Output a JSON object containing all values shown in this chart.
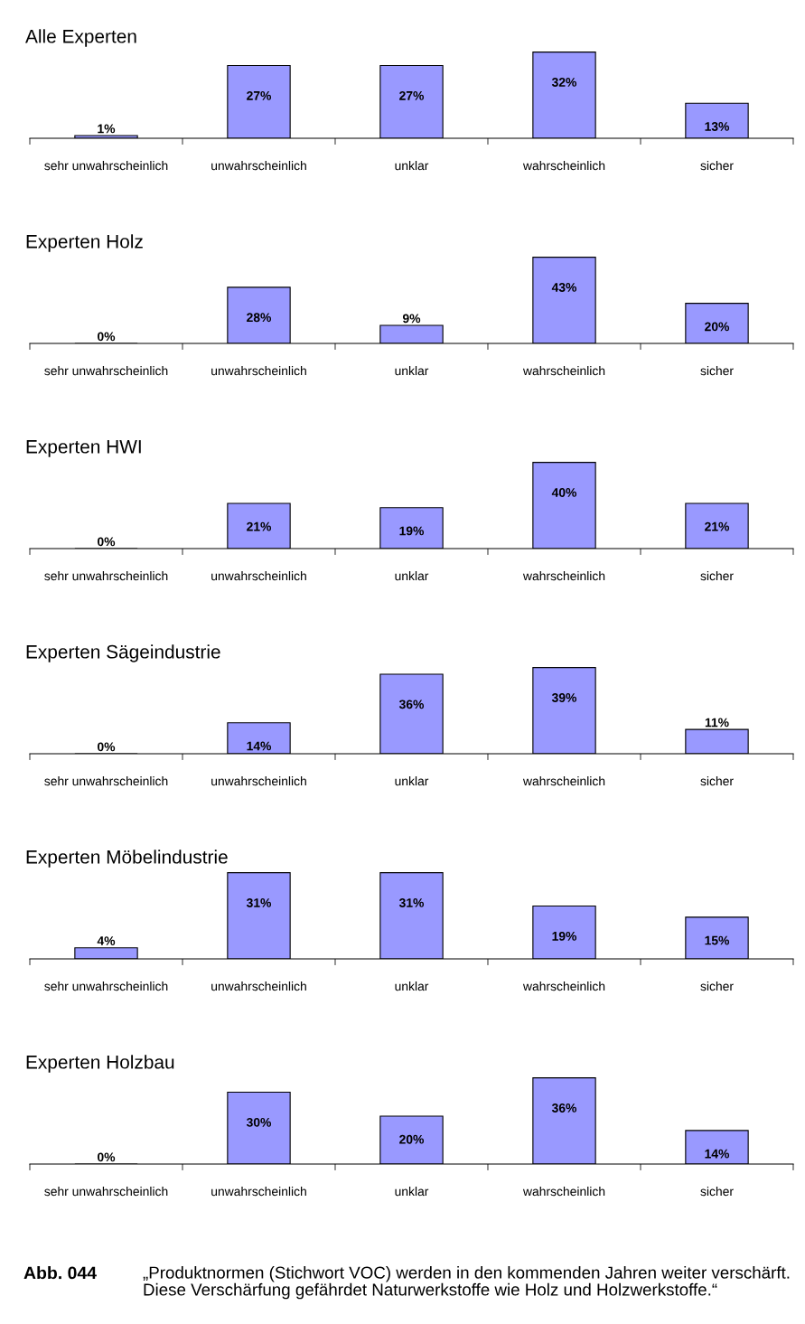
{
  "chart_data": [
    {
      "type": "bar",
      "title": "Alle Experten",
      "categories": [
        "sehr unwahrscheinlich",
        "unwahrscheinlich",
        "unklar",
        "wahrscheinlich",
        "sicher"
      ],
      "values": [
        1,
        27,
        27,
        32,
        13
      ],
      "value_labels": [
        "1%",
        "27%",
        "27%",
        "32%",
        "13%"
      ],
      "color": "#9999ff"
    },
    {
      "type": "bar",
      "title": "Experten Holz",
      "categories": [
        "sehr unwahrscheinlich",
        "unwahrscheinlich",
        "unklar",
        "wahrscheinlich",
        "sicher"
      ],
      "values": [
        0,
        28,
        9,
        43,
        20
      ],
      "value_labels": [
        "0%",
        "28%",
        "9%",
        "43%",
        "20%"
      ],
      "color": "#9999ff"
    },
    {
      "type": "bar",
      "title": "Experten HWI",
      "categories": [
        "sehr unwahrscheinlich",
        "unwahrscheinlich",
        "unklar",
        "wahrscheinlich",
        "sicher"
      ],
      "values": [
        0,
        21,
        19,
        40,
        21
      ],
      "value_labels": [
        "0%",
        "21%",
        "19%",
        "40%",
        "21%"
      ],
      "color": "#9999ff"
    },
    {
      "type": "bar",
      "title": "Experten Sägeindustrie",
      "categories": [
        "sehr unwahrscheinlich",
        "unwahrscheinlich",
        "unklar",
        "wahrscheinlich",
        "sicher"
      ],
      "values": [
        0,
        14,
        36,
        39,
        11
      ],
      "value_labels": [
        "0%",
        "14%",
        "36%",
        "39%",
        "11%"
      ],
      "color": "#9999ff"
    },
    {
      "type": "bar",
      "title": "Experten Möbelindustrie",
      "categories": [
        "sehr unwahrscheinlich",
        "unwahrscheinlich",
        "unklar",
        "wahrscheinlich",
        "sicher"
      ],
      "values": [
        4,
        31,
        31,
        19,
        15
      ],
      "value_labels": [
        "4%",
        "31%",
        "31%",
        "19%",
        "15%"
      ],
      "color": "#9999ff"
    },
    {
      "type": "bar",
      "title": "Experten Holzbau",
      "categories": [
        "sehr unwahrscheinlich",
        "unwahrscheinlich",
        "unklar",
        "wahrscheinlich",
        "sicher"
      ],
      "values": [
        0,
        30,
        20,
        36,
        14
      ],
      "value_labels": [
        "0%",
        "30%",
        "20%",
        "36%",
        "14%"
      ],
      "color": "#9999ff",
      "annotations": [
        "Abb. 044",
        "„Produktnormen (Stichwort VOC) werden in den kommenden Jahren weiter verschärft. Diese Verschärfung gefährdet Naturwerkstoffe wie Holz und Holzwerkstoffe.“"
      ]
    }
  ]
}
